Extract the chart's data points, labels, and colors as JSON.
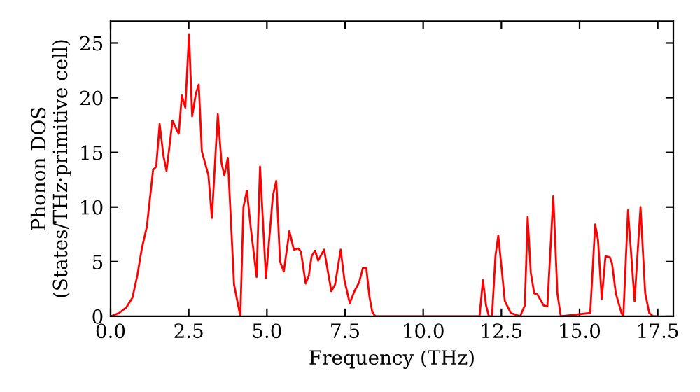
{
  "chart_data": {
    "type": "line",
    "xlabel": "Frequency (THz)",
    "ylabel": "Phonon DOS\n(States/THz·primitive cell)",
    "series": [
      {
        "color": "#ff0000",
        "x": [
          0,
          0.27,
          0.5,
          0.7,
          0.86,
          1.0,
          1.16,
          1.36,
          1.46,
          1.57,
          1.69,
          1.79,
          1.98,
          2.18,
          2.28,
          2.39,
          2.51,
          2.61,
          2.73,
          2.82,
          2.92,
          3.13,
          3.24,
          3.43,
          3.55,
          3.64,
          3.75,
          3.95,
          4.15,
          4.25,
          4.36,
          4.48,
          4.67,
          4.78,
          4.97,
          5.19,
          5.3,
          5.42,
          5.54,
          5.72,
          5.86,
          6.01,
          6.09,
          6.24,
          6.34,
          6.43,
          6.54,
          6.64,
          6.83,
          7.06,
          7.18,
          7.36,
          7.48,
          7.65,
          7.8,
          7.95,
          8.07,
          8.18,
          8.28,
          8.37,
          8.47,
          11.8,
          11.91,
          12.01,
          12.1,
          12.2,
          12.31,
          12.4,
          12.5,
          12.61,
          12.8,
          13.1,
          13.25,
          13.34,
          13.44,
          13.55,
          13.65,
          13.85,
          13.97,
          14.16,
          14.29,
          14.4,
          15.34,
          15.5,
          15.59,
          15.71,
          15.83,
          15.97,
          16.04,
          16.16,
          16.34,
          16.4,
          16.55,
          16.76,
          16.95,
          17.1,
          17.23,
          17.35,
          17.5
        ],
        "values": [
          0,
          0.3,
          0.8,
          1.7,
          3.8,
          6.2,
          8.2,
          13.4,
          13.7,
          17.6,
          14.7,
          13.3,
          17.9,
          16.7,
          20.2,
          19.1,
          25.8,
          18.3,
          20.4,
          21.2,
          15.1,
          12.9,
          9.0,
          18.5,
          14.0,
          12.9,
          14.5,
          2.9,
          0,
          10.0,
          11.5,
          8.2,
          3.6,
          13.7,
          3.5,
          11.0,
          12.4,
          5.0,
          4.1,
          7.8,
          6.1,
          6.2,
          5.9,
          3.0,
          3.7,
          5.5,
          6.0,
          5.1,
          6.1,
          2.3,
          2.9,
          6.1,
          3.3,
          1.2,
          2.3,
          3.1,
          4.4,
          4.4,
          1.8,
          0.4,
          0,
          0,
          3.3,
          1.0,
          0,
          0,
          5.5,
          7.4,
          4.6,
          1.4,
          0.3,
          0,
          1.0,
          9.1,
          4.0,
          2.1,
          2.0,
          1.0,
          0.9,
          11.0,
          2.1,
          0,
          0.3,
          8.4,
          7.0,
          1.6,
          5.5,
          5.4,
          4.8,
          2.1,
          0.3,
          0,
          9.7,
          1.4,
          10.0,
          2.1,
          0.3,
          0,
          0
        ]
      }
    ],
    "xlim": [
      0,
      18
    ],
    "ylim": [
      0,
      27
    ],
    "xticks": [
      {
        "value": 0,
        "label": "0.0"
      },
      {
        "value": 2.5,
        "label": "2.5"
      },
      {
        "value": 5,
        "label": "5.0"
      },
      {
        "value": 7.5,
        "label": "7.5"
      },
      {
        "value": 10,
        "label": "10.0"
      },
      {
        "value": 12.5,
        "label": "12.5"
      },
      {
        "value": 15,
        "label": "15.0"
      },
      {
        "value": 17.5,
        "label": "17.5"
      }
    ],
    "yticks": [
      0,
      5,
      10,
      15,
      20,
      25
    ],
    "grid": false,
    "legend": false,
    "marker": "none",
    "line_style": "solid"
  }
}
